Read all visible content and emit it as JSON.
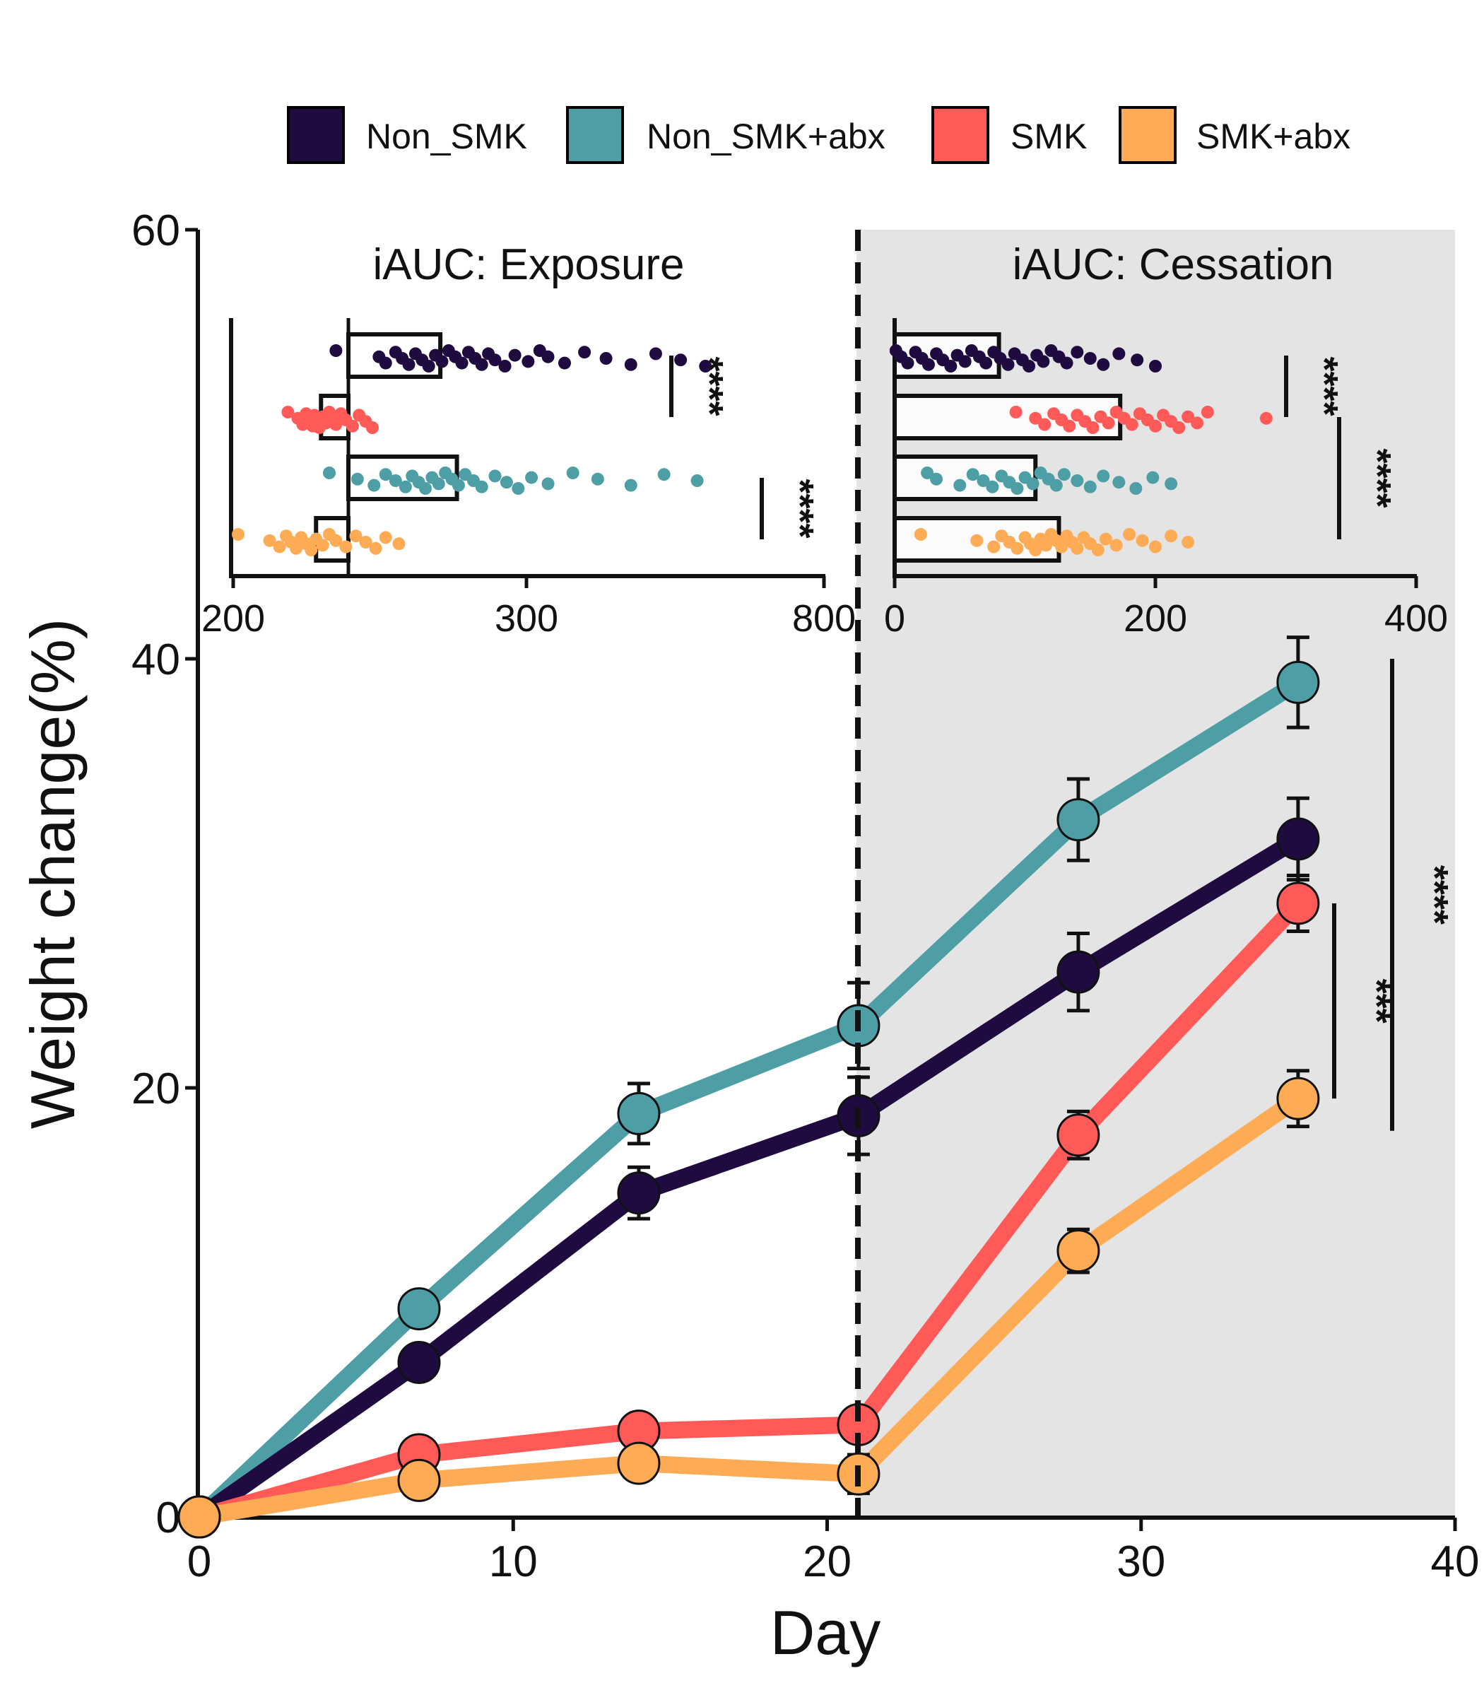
{
  "legend": {
    "items": [
      {
        "label": "Non_SMK",
        "color": "#1f0b40"
      },
      {
        "label": "Non_SMK+abx",
        "color": "#4e9ea6"
      },
      {
        "label": "SMK",
        "color": "#ff5a58"
      },
      {
        "label": "SMK+abx",
        "color": "#fdab55"
      }
    ]
  },
  "colors": {
    "shade": "#e4e4e4",
    "axis": "#111111"
  },
  "chart_data": [
    {
      "type": "line",
      "xlabel": "Day",
      "ylabel": "Weight change(%)",
      "xlim": [
        0,
        40
      ],
      "ylim": [
        0,
        60
      ],
      "x_ticks": [
        "0",
        "10",
        "20",
        "30",
        "40"
      ],
      "y_ticks": [
        "0",
        "20",
        "40",
        "60"
      ],
      "x": [
        0,
        7,
        14,
        21,
        28,
        35
      ],
      "vertical_line_x": 21,
      "shaded_x_range": [
        21,
        40
      ],
      "series": [
        {
          "name": "Non_SMK",
          "color": "#1f0b40",
          "values": [
            0,
            7.2,
            15.1,
            18.7,
            25.4,
            31.6
          ],
          "error": [
            0.3,
            0.5,
            1.2,
            1.8,
            1.8,
            1.9
          ]
        },
        {
          "name": "Non_SMK+abx",
          "color": "#4e9ea6",
          "values": [
            0,
            9.7,
            18.8,
            22.9,
            32.5,
            38.9
          ],
          "error": [
            0.3,
            0.7,
            1.4,
            2.0,
            1.9,
            2.1
          ]
        },
        {
          "name": "SMK",
          "color": "#ff5a58",
          "values": [
            0,
            2.9,
            4.0,
            4.3,
            17.8,
            28.6
          ],
          "error": [
            0.3,
            0.4,
            0.5,
            0.4,
            1.1,
            1.3
          ]
        },
        {
          "name": "SMK+abx",
          "color": "#fdab55",
          "values": [
            0,
            1.7,
            2.5,
            2.0,
            12.4,
            19.5
          ],
          "error": [
            0.3,
            0.5,
            0.5,
            0.9,
            1.0,
            1.3
          ]
        }
      ],
      "significance": [
        {
          "label": "***",
          "from": 19.5,
          "to": 28.6
        },
        {
          "label": "****",
          "from": 18.0,
          "to": 40.0
        }
      ]
    },
    {
      "type": "bar",
      "title": "iAUC: Exposure",
      "orientation": "horizontal",
      "x_ticks": [
        "200",
        "300",
        "800"
      ],
      "categories": [
        "Non_SMK",
        "SMK",
        "Non_SMK+abx",
        "SMK+abx"
      ],
      "values": [
        285,
        213,
        295,
        210
      ],
      "points": [
        [
          222,
          248,
          252,
          258,
          262,
          266,
          270,
          274,
          278,
          282,
          286,
          290,
          294,
          298,
          302,
          306,
          310,
          314,
          318,
          324,
          330,
          338,
          345,
          350,
          360,
          372,
          385,
          400,
          415,
          430,
          445
        ],
        [
          193,
          199,
          202,
          204,
          206,
          208,
          209,
          210,
          212,
          214,
          216,
          218,
          220,
          222,
          225,
          228,
          232,
          236,
          240,
          244
        ],
        [
          218,
          235,
          245,
          252,
          258,
          264,
          268,
          272,
          276,
          280,
          284,
          288,
          292,
          296,
          300,
          305,
          310,
          318,
          325,
          332,
          340,
          350,
          365,
          380,
          400,
          420,
          440
        ],
        [
          163,
          182,
          188,
          192,
          195,
          198,
          201,
          204,
          207,
          210,
          214,
          218,
          222,
          228,
          234,
          240,
          246,
          252,
          260
        ]
      ],
      "significance": [
        {
          "label": "****",
          "groups": [
            "Non_SMK",
            "SMK"
          ]
        },
        {
          "label": "****",
          "groups": [
            "Non_SMK+abx",
            "SMK+abx"
          ]
        }
      ]
    },
    {
      "type": "bar",
      "title": "iAUC: Cessation",
      "orientation": "horizontal",
      "xlim": [
        0,
        400
      ],
      "x_ticks": [
        "0",
        "200",
        "400"
      ],
      "categories": [
        "Non_SMK",
        "SMK",
        "Non_SMK+abx",
        "SMK+abx"
      ],
      "values": [
        80,
        173,
        108,
        126
      ],
      "points": [
        [
          1,
          5,
          10,
          16,
          21,
          26,
          32,
          37,
          43,
          48,
          54,
          59,
          65,
          70,
          76,
          81,
          87,
          92,
          98,
          103,
          109,
          114,
          120,
          126,
          132,
          140,
          150,
          160,
          172,
          186,
          200
        ],
        [
          93,
          108,
          115,
          122,
          128,
          134,
          140,
          146,
          152,
          158,
          164,
          170,
          176,
          182,
          188,
          194,
          200,
          206,
          212,
          218,
          225,
          232,
          240,
          285
        ],
        [
          25,
          32,
          50,
          60,
          68,
          75,
          82,
          88,
          94,
          100,
          106,
          112,
          118,
          124,
          130,
          140,
          150,
          160,
          172,
          185,
          198,
          212
        ],
        [
          20,
          63,
          76,
          82,
          88,
          94,
          100,
          104,
          108,
          112,
          116,
          120,
          124,
          128,
          132,
          136,
          140,
          145,
          150,
          156,
          162,
          170,
          180,
          190,
          200,
          212,
          225
        ]
      ],
      "significance": [
        {
          "label": "****",
          "groups": [
            "Non_SMK",
            "SMK"
          ]
        },
        {
          "label": "****",
          "groups": [
            "SMK",
            "SMK+abx"
          ]
        }
      ]
    }
  ]
}
